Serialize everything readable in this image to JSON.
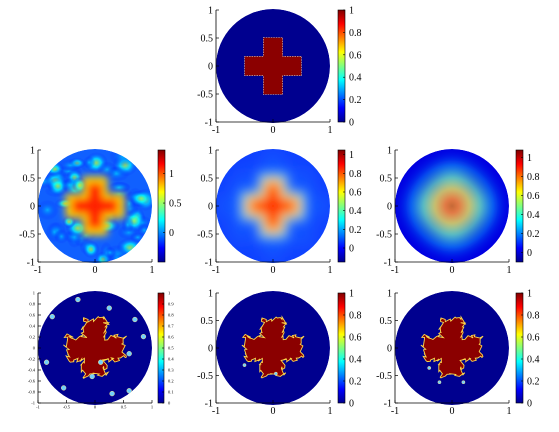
{
  "chart_data": [
    {
      "type": "heatmap",
      "panel": "row1-exact",
      "xlim": [
        -1,
        1
      ],
      "ylim": [
        -1,
        1
      ],
      "xticks": [
        "-1",
        "0",
        "1"
      ],
      "yticks": [
        "1",
        "0.5",
        "0",
        "-0.5",
        "-1"
      ],
      "colorbar": {
        "min": 0,
        "max": 1,
        "ticks": [
          "1",
          "0.8",
          "0.6",
          "0.4",
          "0.2",
          "0"
        ]
      }
    },
    {
      "type": "heatmap",
      "panel": "row2-left",
      "xlim": [
        -1,
        1
      ],
      "ylim": [
        -1,
        1
      ],
      "xticks": [
        "-1",
        "0",
        "1"
      ],
      "yticks": [
        "1",
        "0.5",
        "0",
        "-0.5",
        "-1"
      ],
      "colorbar": {
        "min": -0.5,
        "max": 1.4,
        "ticks": [
          "1",
          "0.5",
          "0"
        ]
      }
    },
    {
      "type": "heatmap",
      "panel": "row2-middle",
      "xlim": [
        -1,
        1
      ],
      "ylim": [
        -1,
        1
      ],
      "xticks": [
        "-1",
        "0",
        "1"
      ],
      "yticks": [
        "1",
        "0.5",
        "0",
        "-0.5",
        "-1"
      ],
      "colorbar": {
        "min": -0.15,
        "max": 1.05,
        "ticks": [
          "1",
          "0.8",
          "0.6",
          "0.4",
          "0.2",
          "0"
        ]
      }
    },
    {
      "type": "heatmap",
      "panel": "row2-right",
      "xlim": [
        -1,
        1
      ],
      "ylim": [
        -1,
        1
      ],
      "xticks": [
        "-1",
        "0",
        "1"
      ],
      "yticks": [
        "1",
        "0.5",
        "0",
        "-0.5",
        "-1"
      ],
      "colorbar": {
        "min": -0.1,
        "max": 1.08,
        "ticks": [
          "1",
          "0.8",
          "0.6",
          "0.4",
          "0.2",
          "0"
        ]
      }
    },
    {
      "type": "heatmap",
      "panel": "row3-left",
      "xlim": [
        -1,
        1
      ],
      "ylim": [
        -1,
        1
      ],
      "xticks": [
        "-1",
        "-0.5",
        "0",
        "0.5",
        "1"
      ],
      "yticks": [
        "1",
        "0.8",
        "0.6",
        "0.4",
        "0.2",
        "0",
        "-0.2",
        "-0.4",
        "-0.6",
        "-0.8",
        "-1"
      ],
      "colorbar": {
        "min": 0,
        "max": 1,
        "ticks": [
          "1",
          "0.9",
          "0.8",
          "0.7",
          "0.6",
          "0.5",
          "0.4",
          "0.3",
          "0.2",
          "0.1",
          "0"
        ]
      }
    },
    {
      "type": "heatmap",
      "panel": "row3-middle",
      "xlim": [
        -1,
        1
      ],
      "ylim": [
        -1,
        1
      ],
      "xticks": [
        "-1",
        "0",
        "1"
      ],
      "yticks": [
        "1",
        "0.5",
        "0",
        "-0.5",
        "-1"
      ],
      "colorbar": {
        "min": 0,
        "max": 1,
        "ticks": [
          "1",
          "0.8",
          "0.6",
          "0.4",
          "0.2",
          "0"
        ]
      }
    },
    {
      "type": "heatmap",
      "panel": "row3-right",
      "xlim": [
        -1,
        1
      ],
      "ylim": [
        -1,
        1
      ],
      "xticks": [
        "-1",
        "0",
        "1"
      ],
      "yticks": [
        "1",
        "0.5",
        "0",
        "-0.5",
        "-1"
      ],
      "colorbar": {
        "min": 0,
        "max": 1,
        "ticks": [
          "1",
          "0.8",
          "0.6",
          "0.4",
          "0.2",
          "0"
        ]
      }
    }
  ]
}
